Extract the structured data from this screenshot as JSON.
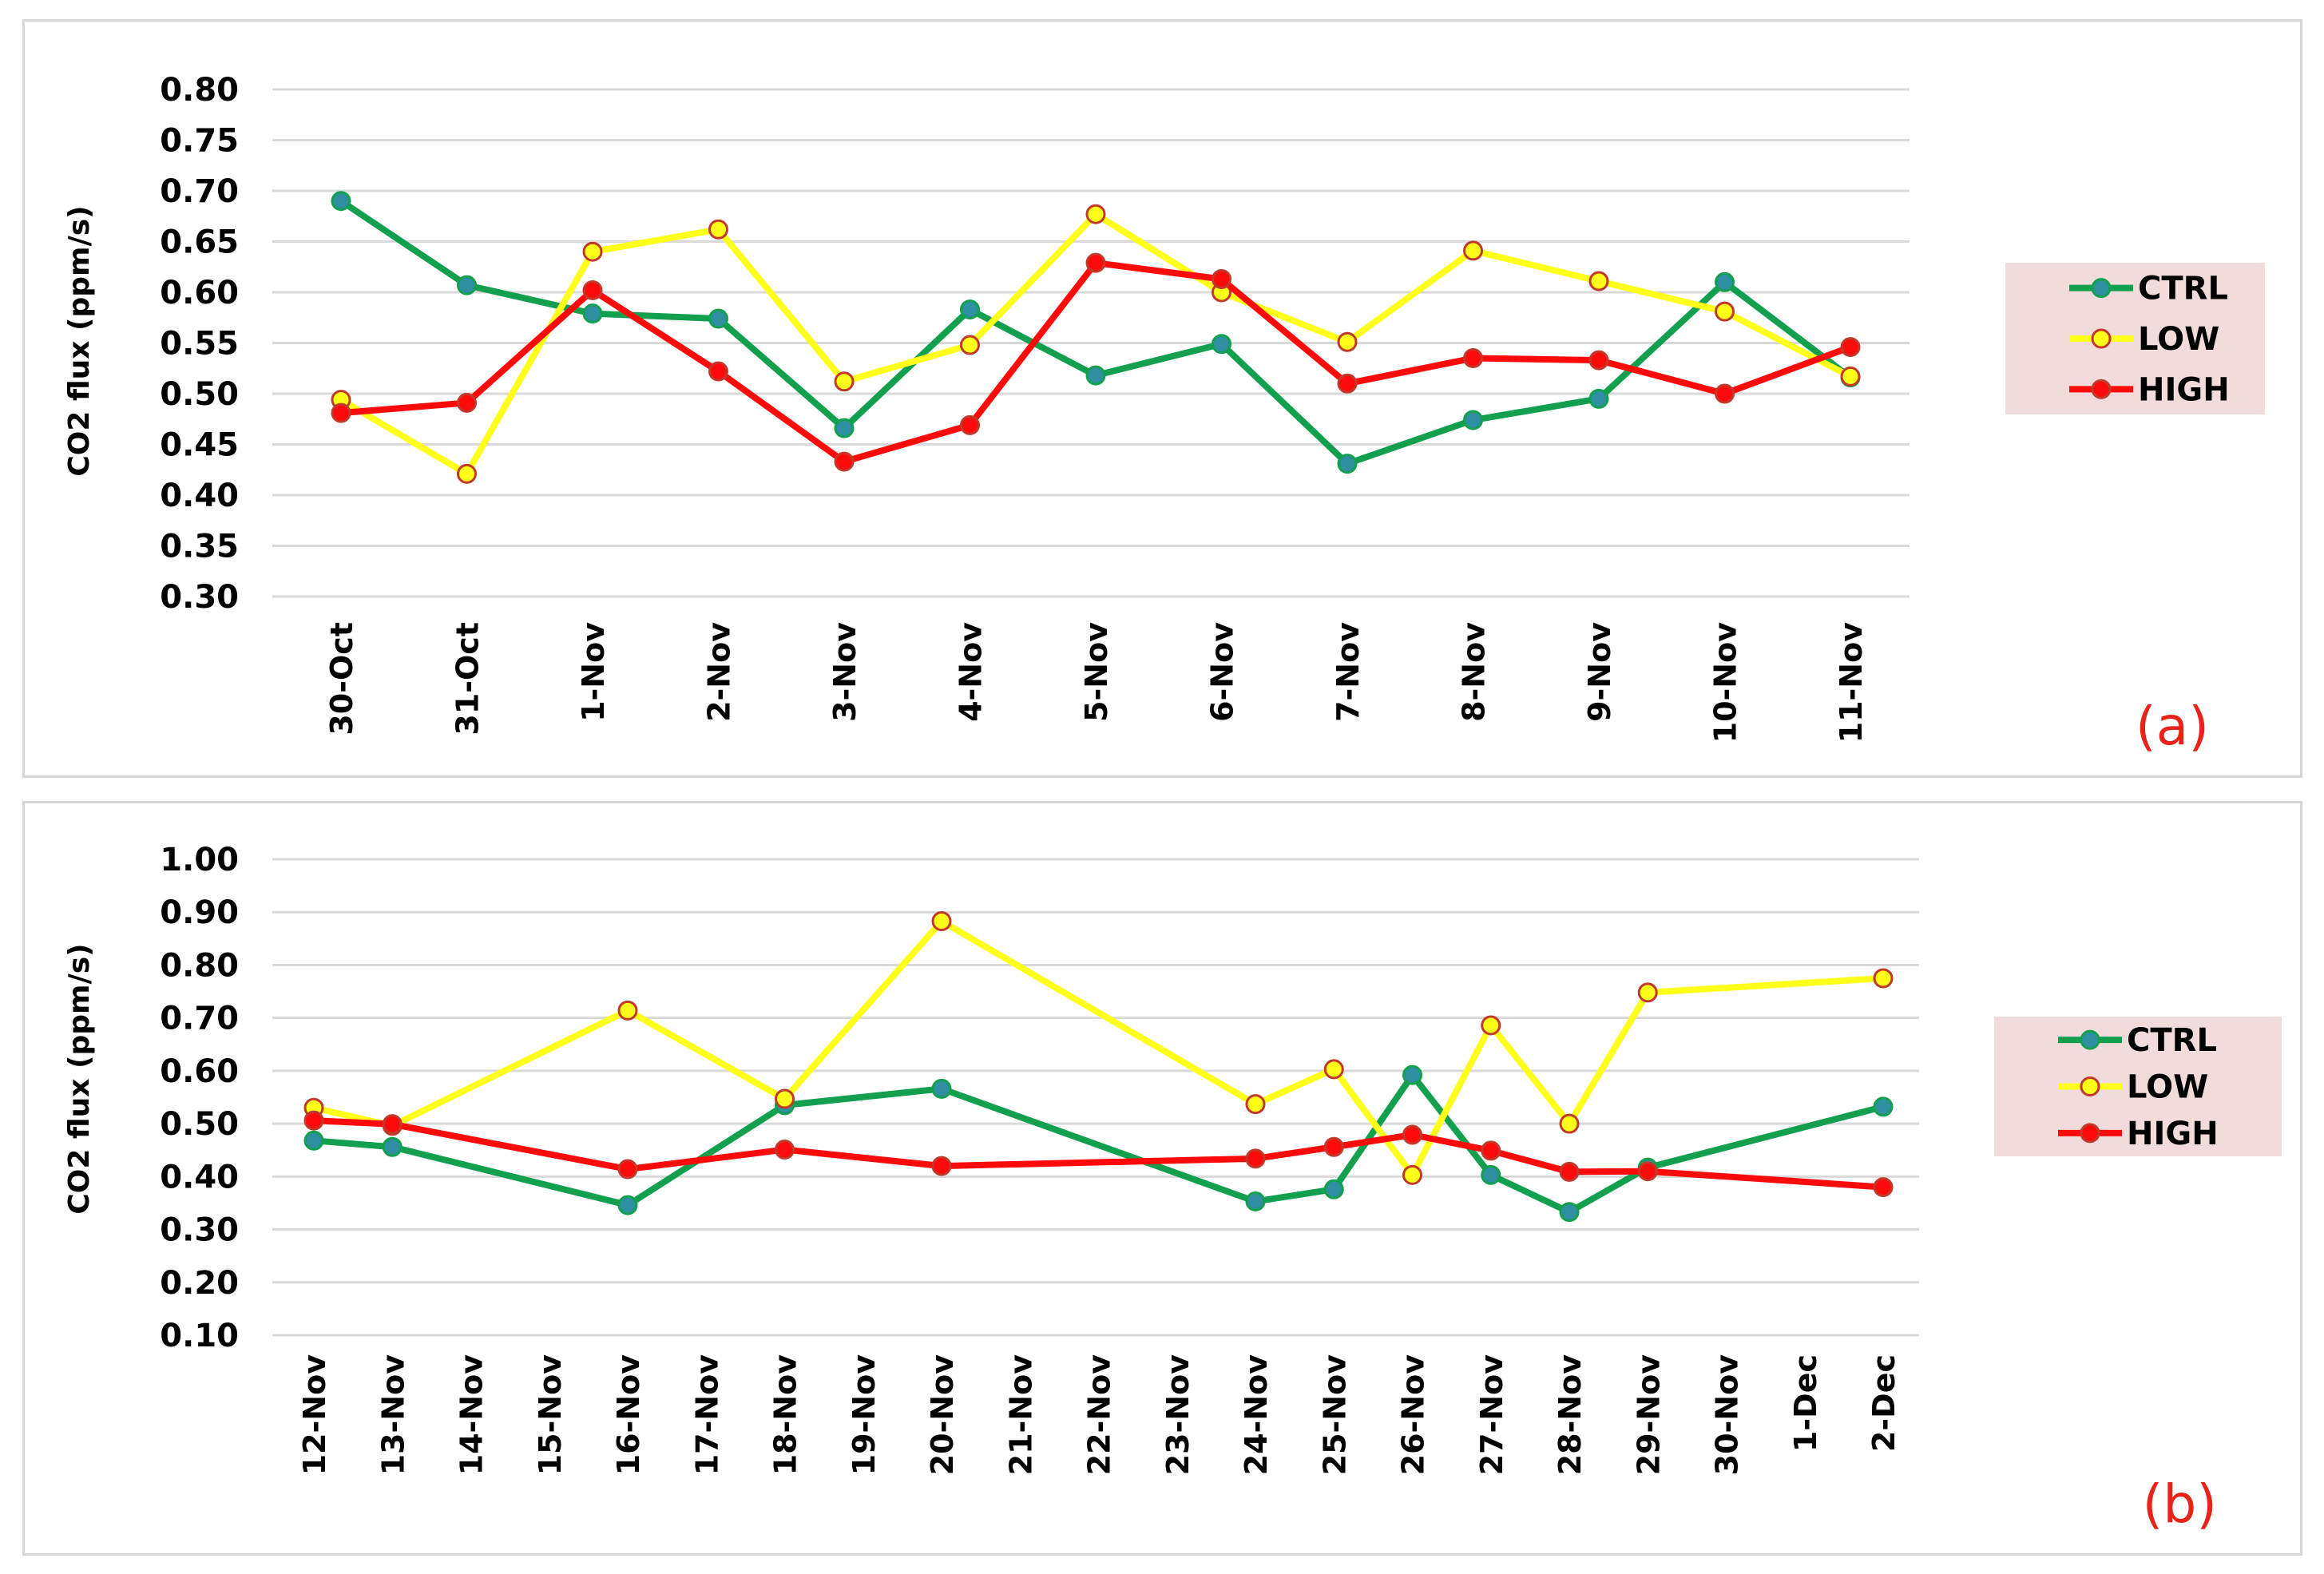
{
  "colors": {
    "CTRL": "#12a04f",
    "CTRL_marker": "#2e8fa0",
    "LOW": "#ffff1a",
    "LOW_marker": "#ffff1a",
    "HIGH": "#ff0a0a",
    "marker_edge": "#c0392b",
    "legend_bg": "#f2dcdb",
    "panel_label": "#e8231a"
  },
  "chart_data": [
    {
      "type": "line",
      "panel_label": "(a)",
      "ylabel": "CO2  flux  (ppm/s)",
      "xlabel": "",
      "ylim": [
        0.3,
        0.8
      ],
      "yticks": [
        "0.80",
        "0.75",
        "0.70",
        "0.65",
        "0.60",
        "0.55",
        "0.50",
        "0.45",
        "0.40",
        "0.35",
        "0.30"
      ],
      "categories": [
        "30-Oct",
        "31-Oct",
        "1-Nov",
        "2-Nov",
        "3-Nov",
        "4-Nov",
        "5-Nov",
        "6-Nov",
        "7-Nov",
        "8-Nov",
        "9-Nov",
        "10-Nov",
        "11-Nov"
      ],
      "legend": [
        "CTRL",
        "LOW",
        "HIGH"
      ],
      "series": [
        {
          "name": "CTRL",
          "values": [
            0.69,
            0.607,
            0.579,
            0.574,
            0.466,
            0.583,
            0.518,
            0.549,
            0.431,
            0.474,
            0.495,
            0.61,
            0.516
          ]
        },
        {
          "name": "LOW",
          "values": [
            0.494,
            0.421,
            0.64,
            0.662,
            0.512,
            0.548,
            0.677,
            0.6,
            0.551,
            0.641,
            0.611,
            0.581,
            0.517
          ]
        },
        {
          "name": "HIGH",
          "values": [
            0.481,
            0.491,
            0.602,
            0.522,
            0.433,
            0.469,
            0.629,
            0.613,
            0.51,
            0.535,
            0.533,
            0.5,
            0.546
          ]
        }
      ]
    },
    {
      "type": "line",
      "panel_label": "(b)",
      "ylabel": "CO2 flux (ppm/s)",
      "xlabel": "",
      "ylim": [
        0.1,
        1.0
      ],
      "yticks": [
        "1.00",
        "0.90",
        "0.80",
        "0.70",
        "0.60",
        "0.50",
        "0.40",
        "0.30",
        "0.20",
        "0.10"
      ],
      "categories": [
        "12-Nov",
        "13-Nov",
        "14-Nov",
        "15-Nov",
        "16-Nov",
        "17-Nov",
        "18-Nov",
        "19-Nov",
        "20-Nov",
        "21-Nov",
        "22-Nov",
        "23-Nov",
        "24-Nov",
        "25-Nov",
        "26-Nov",
        "27-Nov",
        "28-Nov",
        "29-Nov",
        "30-Nov",
        "1-Dec",
        "2-Dec"
      ],
      "legend": [
        "CTRL",
        "LOW",
        "HIGH"
      ],
      "series": [
        {
          "name": "CTRL",
          "values": [
            0.468,
            0.456,
            null,
            null,
            0.346,
            null,
            0.535,
            null,
            0.566,
            null,
            null,
            null,
            0.353,
            0.376,
            0.592,
            0.403,
            0.333,
            0.417,
            null,
            null,
            0.532
          ]
        },
        {
          "name": "LOW",
          "values": [
            0.53,
            0.496,
            null,
            null,
            0.714,
            null,
            0.547,
            null,
            0.883,
            null,
            null,
            null,
            0.537,
            0.603,
            0.403,
            0.686,
            0.5,
            0.748,
            null,
            null,
            0.775
          ]
        },
        {
          "name": "HIGH",
          "values": [
            0.506,
            0.499,
            null,
            null,
            0.414,
            null,
            0.451,
            null,
            0.42,
            null,
            null,
            null,
            0.434,
            0.456,
            0.479,
            0.449,
            0.409,
            0.41,
            null,
            null,
            0.38
          ]
        }
      ]
    }
  ]
}
